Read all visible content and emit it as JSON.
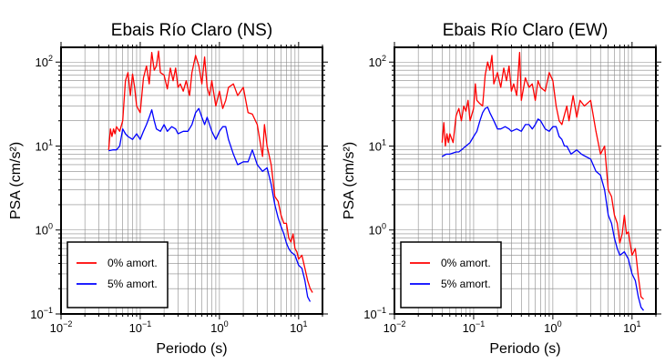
{
  "chart_data": [
    {
      "type": "line",
      "title": "Ebais Río Claro (NS)",
      "xlabel": "Periodo (s)",
      "ylabel": "PSA (cm/s²)",
      "xscale": "log",
      "yscale": "log",
      "xlim": [
        0.01,
        20
      ],
      "ylim": [
        0.1,
        150
      ],
      "x_ticks": [
        {
          "value": 0.01,
          "base": "10",
          "exp": "−2"
        },
        {
          "value": 0.1,
          "base": "10",
          "exp": "−1"
        },
        {
          "value": 1,
          "base": "10",
          "exp": "0"
        },
        {
          "value": 10,
          "base": "10",
          "exp": "1"
        }
      ],
      "y_ticks": [
        {
          "value": 0.1,
          "base": "10",
          "exp": "−1"
        },
        {
          "value": 1,
          "base": "10",
          "exp": "0"
        },
        {
          "value": 10,
          "base": "10",
          "exp": "1"
        },
        {
          "value": 100,
          "base": "10",
          "exp": "2"
        }
      ],
      "grid": true,
      "legend_position": "bottom-left",
      "series": [
        {
          "name": "0% amort.",
          "color": "#ff0000",
          "points": [
            [
              0.04,
              9
            ],
            [
              0.042,
              16
            ],
            [
              0.044,
              13
            ],
            [
              0.046,
              16
            ],
            [
              0.048,
              14
            ],
            [
              0.05,
              17
            ],
            [
              0.055,
              15
            ],
            [
              0.06,
              20
            ],
            [
              0.065,
              60
            ],
            [
              0.07,
              75
            ],
            [
              0.075,
              40
            ],
            [
              0.08,
              72
            ],
            [
              0.085,
              50
            ],
            [
              0.09,
              30
            ],
            [
              0.1,
              25
            ],
            [
              0.11,
              65
            ],
            [
              0.12,
              90
            ],
            [
              0.13,
              55
            ],
            [
              0.14,
              130
            ],
            [
              0.15,
              80
            ],
            [
              0.16,
              90
            ],
            [
              0.17,
              135
            ],
            [
              0.18,
              75
            ],
            [
              0.2,
              70
            ],
            [
              0.22,
              48
            ],
            [
              0.24,
              85
            ],
            [
              0.26,
              60
            ],
            [
              0.28,
              85
            ],
            [
              0.3,
              50
            ],
            [
              0.32,
              55
            ],
            [
              0.35,
              45
            ],
            [
              0.38,
              60
            ],
            [
              0.42,
              40
            ],
            [
              0.45,
              75
            ],
            [
              0.5,
              120
            ],
            [
              0.55,
              90
            ],
            [
              0.6,
              55
            ],
            [
              0.65,
              115
            ],
            [
              0.7,
              50
            ],
            [
              0.75,
              40
            ],
            [
              0.8,
              60
            ],
            [
              0.9,
              30
            ],
            [
              1.0,
              45
            ],
            [
              1.1,
              28
            ],
            [
              1.2,
              35
            ],
            [
              1.3,
              50
            ],
            [
              1.5,
              55
            ],
            [
              1.7,
              40
            ],
            [
              2.0,
              50
            ],
            [
              2.3,
              25
            ],
            [
              2.6,
              24
            ],
            [
              3.0,
              18
            ],
            [
              3.5,
              7.5
            ],
            [
              3.7,
              18
            ],
            [
              4.0,
              10
            ],
            [
              4.5,
              6
            ],
            [
              5.0,
              2.5
            ],
            [
              5.5,
              2.2
            ],
            [
              6.0,
              1.5
            ],
            [
              6.5,
              1.2
            ],
            [
              7.0,
              1.2
            ],
            [
              7.5,
              0.8
            ],
            [
              8.0,
              0.72
            ],
            [
              8.5,
              0.9
            ],
            [
              9.0,
              0.6
            ],
            [
              9.5,
              0.55
            ],
            [
              10.0,
              0.45
            ],
            [
              11.0,
              0.5
            ],
            [
              12.0,
              0.35
            ],
            [
              13.0,
              0.25
            ],
            [
              14.0,
              0.2
            ],
            [
              15.0,
              0.18
            ]
          ]
        },
        {
          "name": "5% amort.",
          "color": "#0000ff",
          "points": [
            [
              0.04,
              8.8
            ],
            [
              0.045,
              9
            ],
            [
              0.05,
              9
            ],
            [
              0.055,
              10
            ],
            [
              0.06,
              16
            ],
            [
              0.065,
              14
            ],
            [
              0.07,
              13
            ],
            [
              0.08,
              12
            ],
            [
              0.09,
              14
            ],
            [
              0.1,
              12
            ],
            [
              0.11,
              15
            ],
            [
              0.12,
              18
            ],
            [
              0.13,
              22
            ],
            [
              0.14,
              27
            ],
            [
              0.15,
              20
            ],
            [
              0.16,
              16
            ],
            [
              0.18,
              15
            ],
            [
              0.2,
              18
            ],
            [
              0.22,
              15
            ],
            [
              0.25,
              17
            ],
            [
              0.28,
              16
            ],
            [
              0.3,
              14
            ],
            [
              0.35,
              15
            ],
            [
              0.4,
              15
            ],
            [
              0.45,
              18
            ],
            [
              0.5,
              25
            ],
            [
              0.55,
              28
            ],
            [
              0.6,
              22
            ],
            [
              0.65,
              18
            ],
            [
              0.7,
              22
            ],
            [
              0.8,
              15
            ],
            [
              0.9,
              12
            ],
            [
              1.0,
              15
            ],
            [
              1.1,
              17
            ],
            [
              1.2,
              17
            ],
            [
              1.3,
              12
            ],
            [
              1.5,
              8
            ],
            [
              1.7,
              6
            ],
            [
              2.0,
              6.5
            ],
            [
              2.3,
              6.5
            ],
            [
              2.6,
              9
            ],
            [
              3.0,
              6
            ],
            [
              3.5,
              5
            ],
            [
              4.0,
              5.5
            ],
            [
              4.5,
              3.5
            ],
            [
              5.0,
              2.0
            ],
            [
              5.5,
              1.4
            ],
            [
              6.0,
              1.1
            ],
            [
              6.5,
              0.9
            ],
            [
              7.0,
              0.7
            ],
            [
              7.5,
              0.6
            ],
            [
              8.0,
              0.55
            ],
            [
              9.0,
              0.5
            ],
            [
              10.0,
              0.38
            ],
            [
              11.0,
              0.35
            ],
            [
              12.0,
              0.25
            ],
            [
              13.0,
              0.16
            ],
            [
              14.0,
              0.14
            ]
          ]
        }
      ]
    },
    {
      "type": "line",
      "title": "Ebais Río Claro (EW)",
      "xlabel": "Periodo (s)",
      "ylabel": "PSA (cm/s²)",
      "xscale": "log",
      "yscale": "log",
      "xlim": [
        0.01,
        20
      ],
      "ylim": [
        0.1,
        150
      ],
      "x_ticks": [
        {
          "value": 0.01,
          "base": "10",
          "exp": "−2"
        },
        {
          "value": 0.1,
          "base": "10",
          "exp": "−1"
        },
        {
          "value": 1,
          "base": "10",
          "exp": "0"
        },
        {
          "value": 10,
          "base": "10",
          "exp": "1"
        }
      ],
      "y_ticks": [
        {
          "value": 0.1,
          "base": "10",
          "exp": "−1"
        },
        {
          "value": 1,
          "base": "10",
          "exp": "0"
        },
        {
          "value": 10,
          "base": "10",
          "exp": "1"
        },
        {
          "value": 100,
          "base": "10",
          "exp": "2"
        }
      ],
      "grid": true,
      "legend_position": "bottom-left",
      "series": [
        {
          "name": "0% amort.",
          "color": "#ff0000",
          "points": [
            [
              0.04,
              11
            ],
            [
              0.042,
              19
            ],
            [
              0.044,
              10
            ],
            [
              0.046,
              14
            ],
            [
              0.048,
              11
            ],
            [
              0.05,
              14
            ],
            [
              0.055,
              11
            ],
            [
              0.06,
              23
            ],
            [
              0.065,
              28
            ],
            [
              0.07,
              20
            ],
            [
              0.075,
              30
            ],
            [
              0.08,
              26
            ],
            [
              0.085,
              35
            ],
            [
              0.09,
              20
            ],
            [
              0.1,
              28
            ],
            [
              0.105,
              55
            ],
            [
              0.11,
              35
            ],
            [
              0.12,
              32
            ],
            [
              0.13,
              30
            ],
            [
              0.14,
              70
            ],
            [
              0.15,
              100
            ],
            [
              0.16,
              80
            ],
            [
              0.17,
              120
            ],
            [
              0.18,
              55
            ],
            [
              0.2,
              75
            ],
            [
              0.22,
              50
            ],
            [
              0.24,
              85
            ],
            [
              0.26,
              60
            ],
            [
              0.28,
              90
            ],
            [
              0.3,
              45
            ],
            [
              0.32,
              55
            ],
            [
              0.35,
              40
            ],
            [
              0.38,
              130
            ],
            [
              0.4,
              35
            ],
            [
              0.45,
              65
            ],
            [
              0.5,
              50
            ],
            [
              0.55,
              55
            ],
            [
              0.6,
              35
            ],
            [
              0.65,
              60
            ],
            [
              0.7,
              50
            ],
            [
              0.8,
              45
            ],
            [
              0.9,
              75
            ],
            [
              1.0,
              60
            ],
            [
              1.1,
              30
            ],
            [
              1.2,
              20
            ],
            [
              1.3,
              18
            ],
            [
              1.5,
              30
            ],
            [
              1.6,
              20
            ],
            [
              1.8,
              40
            ],
            [
              2.0,
              22
            ],
            [
              2.2,
              35
            ],
            [
              2.5,
              30
            ],
            [
              3.0,
              35
            ],
            [
              3.5,
              15
            ],
            [
              4.0,
              8
            ],
            [
              4.5,
              10
            ],
            [
              5.0,
              3
            ],
            [
              5.5,
              2.5
            ],
            [
              6.0,
              1.5
            ],
            [
              6.5,
              1.2
            ],
            [
              7.0,
              0.7
            ],
            [
              7.5,
              0.9
            ],
            [
              8.0,
              1.5
            ],
            [
              8.5,
              0.9
            ],
            [
              9.0,
              0.95
            ],
            [
              10.0,
              0.5
            ],
            [
              11.0,
              0.6
            ],
            [
              12.0,
              0.28
            ],
            [
              13.0,
              0.16
            ],
            [
              14.0,
              0.15
            ]
          ]
        },
        {
          "name": "5% amort.",
          "color": "#0000ff",
          "points": [
            [
              0.04,
              7.5
            ],
            [
              0.045,
              8
            ],
            [
              0.05,
              8
            ],
            [
              0.06,
              8.5
            ],
            [
              0.065,
              8.5
            ],
            [
              0.07,
              9
            ],
            [
              0.08,
              10
            ],
            [
              0.09,
              11
            ],
            [
              0.1,
              13
            ],
            [
              0.11,
              15
            ],
            [
              0.12,
              20
            ],
            [
              0.13,
              25
            ],
            [
              0.14,
              28
            ],
            [
              0.15,
              29
            ],
            [
              0.16,
              25
            ],
            [
              0.18,
              20
            ],
            [
              0.2,
              16
            ],
            [
              0.22,
              16
            ],
            [
              0.25,
              17
            ],
            [
              0.28,
              16
            ],
            [
              0.3,
              15
            ],
            [
              0.35,
              16
            ],
            [
              0.4,
              15
            ],
            [
              0.45,
              18
            ],
            [
              0.5,
              18
            ],
            [
              0.55,
              16
            ],
            [
              0.6,
              18
            ],
            [
              0.65,
              21
            ],
            [
              0.7,
              20
            ],
            [
              0.8,
              16
            ],
            [
              0.9,
              15
            ],
            [
              1.0,
              17
            ],
            [
              1.1,
              17
            ],
            [
              1.2,
              13
            ],
            [
              1.3,
              12
            ],
            [
              1.4,
              10
            ],
            [
              1.5,
              10
            ],
            [
              1.7,
              8
            ],
            [
              2.0,
              9
            ],
            [
              2.3,
              8
            ],
            [
              2.6,
              7.5
            ],
            [
              3.0,
              7
            ],
            [
              3.5,
              5
            ],
            [
              4.0,
              4.5
            ],
            [
              4.5,
              3
            ],
            [
              5.0,
              1.5
            ],
            [
              5.5,
              1.2
            ],
            [
              6.0,
              0.8
            ],
            [
              6.5,
              0.6
            ],
            [
              7.0,
              0.5
            ],
            [
              8.0,
              0.55
            ],
            [
              9.0,
              0.45
            ],
            [
              10.0,
              0.3
            ],
            [
              11.0,
              0.25
            ],
            [
              12.0,
              0.16
            ],
            [
              13.0,
              0.12
            ],
            [
              14.0,
              0.11
            ]
          ]
        }
      ]
    }
  ]
}
